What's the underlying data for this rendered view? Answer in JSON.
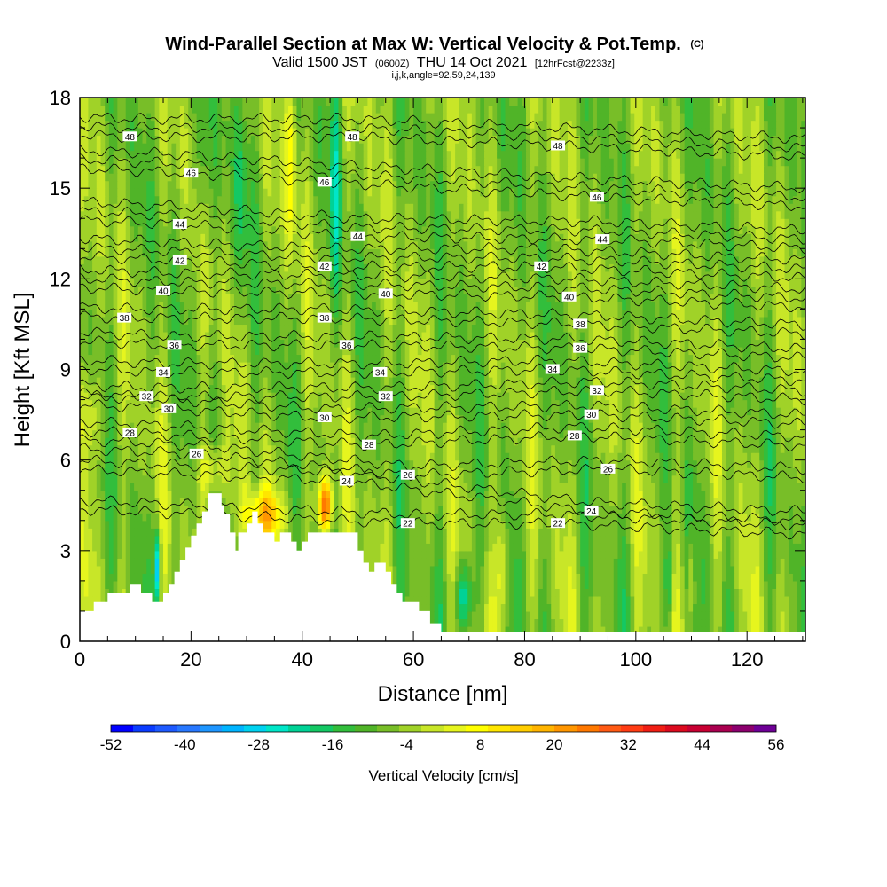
{
  "chart_data": {
    "type": "heatmap",
    "title": "Wind-Parallel Section at Max W: Vertical Velocity & Pot.Temp.",
    "title_tag": "(C)",
    "subtitle": {
      "valid": "Valid 1500 JST",
      "zulu": "(0600Z)",
      "date": "THU 14 Oct 2021",
      "forecast": "[12hrFcst@2233z]"
    },
    "grid_info": "i,j,k,angle=92,59,24,139",
    "xlabel": "Distance [nm]",
    "ylabel": "Height [Kft MSL]",
    "xlim": [
      0,
      130.5
    ],
    "ylim": [
      0,
      18
    ],
    "x_ticks": [
      0,
      20,
      40,
      60,
      80,
      100,
      120
    ],
    "y_ticks": [
      0,
      3,
      6,
      9,
      12,
      15,
      18
    ],
    "colorbar": {
      "title": "Vertical Velocity [cm/s]",
      "min": -52,
      "max": 56,
      "step": 4,
      "tick_labels": [
        -52,
        -40,
        -28,
        -16,
        -4,
        8,
        20,
        32,
        44,
        56
      ],
      "colors": [
        "#0000ff",
        "#0a3cff",
        "#1e5aff",
        "#2878ff",
        "#1e96ff",
        "#00b4ff",
        "#00d2f0",
        "#00e6c8",
        "#00d296",
        "#14c864",
        "#32be3c",
        "#50b428",
        "#78be28",
        "#a0d228",
        "#c8e628",
        "#e6f51e",
        "#ffff00",
        "#ffe600",
        "#ffcd00",
        "#ffb400",
        "#ff9600",
        "#ff7800",
        "#ff5a14",
        "#ff3c14",
        "#f01e14",
        "#dc0a1e",
        "#c80032",
        "#aa0050",
        "#8c006e",
        "#6e0096"
      ]
    },
    "terrain_profile": [
      [
        0,
        1.0
      ],
      [
        2.5,
        1.0
      ],
      [
        2.5,
        1.3
      ],
      [
        5,
        1.3
      ],
      [
        5,
        1.6
      ],
      [
        9,
        1.6
      ],
      [
        9,
        1.9
      ],
      [
        11,
        1.9
      ],
      [
        11,
        1.6
      ],
      [
        13,
        1.6
      ],
      [
        13,
        1.3
      ],
      [
        15,
        1.3
      ],
      [
        15,
        1.6
      ],
      [
        16,
        1.6
      ],
      [
        16,
        1.9
      ],
      [
        17,
        1.9
      ],
      [
        17,
        2.3
      ],
      [
        18,
        2.3
      ],
      [
        18,
        2.7
      ],
      [
        19,
        2.7
      ],
      [
        19,
        3.1
      ],
      [
        20,
        3.1
      ],
      [
        20,
        3.5
      ],
      [
        21,
        3.5
      ],
      [
        21,
        3.9
      ],
      [
        22,
        3.9
      ],
      [
        22,
        4.3
      ],
      [
        23,
        4.3
      ],
      [
        23,
        4.9
      ],
      [
        25.5,
        4.9
      ],
      [
        25.5,
        4.5
      ],
      [
        26,
        4.5
      ],
      [
        26,
        4.2
      ],
      [
        27,
        4.2
      ],
      [
        27,
        3.6
      ],
      [
        28,
        3.6
      ],
      [
        28,
        3.0
      ],
      [
        28.5,
        3.0
      ],
      [
        28.5,
        3.6
      ],
      [
        30,
        3.6
      ],
      [
        30,
        3.9
      ],
      [
        31,
        3.9
      ],
      [
        31,
        4.3
      ],
      [
        32,
        4.3
      ],
      [
        32,
        3.9
      ],
      [
        33,
        3.9
      ],
      [
        33,
        3.6
      ],
      [
        35,
        3.6
      ],
      [
        35,
        3.3
      ],
      [
        36,
        3.3
      ],
      [
        36,
        3.6
      ],
      [
        38,
        3.6
      ],
      [
        38,
        3.3
      ],
      [
        39,
        3.3
      ],
      [
        39,
        3.0
      ],
      [
        40,
        3.0
      ],
      [
        40,
        3.3
      ],
      [
        41,
        3.3
      ],
      [
        41,
        3.6
      ],
      [
        50,
        3.6
      ],
      [
        50,
        3.0
      ],
      [
        51,
        3.0
      ],
      [
        51,
        2.6
      ],
      [
        52,
        2.6
      ],
      [
        52,
        2.3
      ],
      [
        53,
        2.3
      ],
      [
        53,
        2.6
      ],
      [
        55,
        2.6
      ],
      [
        55,
        2.3
      ],
      [
        56,
        2.3
      ],
      [
        56,
        1.9
      ],
      [
        57,
        1.9
      ],
      [
        57,
        1.6
      ],
      [
        58,
        1.6
      ],
      [
        58,
        1.3
      ],
      [
        61,
        1.3
      ],
      [
        61,
        1.0
      ],
      [
        63,
        1.0
      ],
      [
        63,
        0.6
      ],
      [
        65,
        0.6
      ],
      [
        65,
        0.3
      ],
      [
        130.5,
        0.3
      ]
    ],
    "contours": [
      {
        "level": 22,
        "labels": [
          [
            59,
            3.9
          ],
          [
            86,
            3.9
          ]
        ]
      },
      {
        "level": 24,
        "labels": [
          [
            48,
            5.3
          ],
          [
            92,
            4.3
          ]
        ]
      },
      {
        "level": 26,
        "labels": [
          [
            21,
            6.2
          ],
          [
            59,
            5.5
          ],
          [
            95,
            5.7
          ]
        ]
      },
      {
        "level": 28,
        "labels": [
          [
            9,
            6.9
          ],
          [
            52,
            6.5
          ],
          [
            89,
            6.8
          ]
        ]
      },
      {
        "level": 30,
        "labels": [
          [
            16,
            7.7
          ],
          [
            44,
            7.4
          ],
          [
            92,
            7.5
          ]
        ]
      },
      {
        "level": 32,
        "labels": [
          [
            12,
            8.1
          ],
          [
            55,
            8.1
          ],
          [
            93,
            8.3
          ]
        ]
      },
      {
        "level": 34,
        "labels": [
          [
            15,
            8.9
          ],
          [
            54,
            8.9
          ],
          [
            85,
            9.0
          ]
        ]
      },
      {
        "level": 36,
        "labels": [
          [
            17,
            9.8
          ],
          [
            48,
            9.8
          ],
          [
            90,
            9.7
          ]
        ]
      },
      {
        "level": 38,
        "labels": [
          [
            8,
            10.7
          ],
          [
            44,
            10.7
          ],
          [
            90,
            10.5
          ]
        ]
      },
      {
        "level": 40,
        "labels": [
          [
            15,
            11.6
          ],
          [
            55,
            11.5
          ],
          [
            88,
            11.4
          ]
        ]
      },
      {
        "level": 42,
        "labels": [
          [
            18,
            12.6
          ],
          [
            44,
            12.4
          ],
          [
            83,
            12.4
          ]
        ]
      },
      {
        "level": 44,
        "labels": [
          [
            18,
            13.8
          ],
          [
            50,
            13.4
          ],
          [
            94,
            13.3
          ]
        ]
      },
      {
        "level": 46,
        "labels": [
          [
            20,
            15.5
          ],
          [
            44,
            15.2
          ],
          [
            93,
            14.7
          ]
        ]
      },
      {
        "level": 48,
        "labels": [
          [
            9,
            16.7
          ],
          [
            49,
            16.7
          ],
          [
            86,
            16.4
          ]
        ]
      }
    ]
  }
}
